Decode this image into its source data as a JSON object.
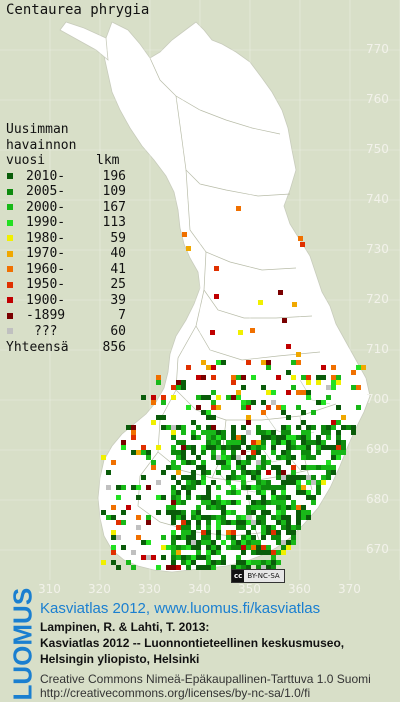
{
  "title": "Centaurea phrygia",
  "legend": {
    "header_line1": "Uusimman",
    "header_line2": "havainnon",
    "header_col1": "vuosi",
    "header_col2": "lkm",
    "items": [
      {
        "label": "2010-",
        "count": "196",
        "color": "#0a5c0a"
      },
      {
        "label": "2005-",
        "count": "109",
        "color": "#0e8a0e"
      },
      {
        "label": "2000-",
        "count": "167",
        "color": "#18b818"
      },
      {
        "label": "1990-",
        "count": "113",
        "color": "#22e022"
      },
      {
        "label": "1980-",
        "count": "59",
        "color": "#f0f000"
      },
      {
        "label": "1970-",
        "count": "40",
        "color": "#f0a800"
      },
      {
        "label": "1960-",
        "count": "41",
        "color": "#f07000"
      },
      {
        "label": "1950-",
        "count": "25",
        "color": "#e03000"
      },
      {
        "label": "1900-",
        "count": "39",
        "color": "#c00000"
      },
      {
        "label": "-1899",
        "count": "7",
        "color": "#7a0000"
      },
      {
        "label": "???",
        "count": "60",
        "color": "#c0c0c0"
      }
    ],
    "total_label": "Yhteensä",
    "total_count": "856"
  },
  "y_ticks": [
    "770",
    "760",
    "750",
    "740",
    "730",
    "720",
    "710",
    "700",
    "690",
    "680",
    "670"
  ],
  "x_ticks": [
    "310",
    "320",
    "330",
    "340",
    "350",
    "360",
    "370"
  ],
  "cc_badge": {
    "cc": "cc",
    "text": "BY-NC-SA"
  },
  "logo_text": "LUOMUS",
  "footer": {
    "atlas_title": "Kasviatlas 2012, www.luomus.fi/kasviatlas",
    "citation_line1": "Lampinen, R. & Lahti, T. 2013:",
    "citation_line2": "Kasviatlas 2012 -- Luonnontieteellinen keskusmuseo,",
    "citation_line3": "Helsingin yliopisto, Helsinki",
    "license_line1": "Creative Commons Nimeä-Epäkaupallinen-Tarttuva 1.0 Suomi",
    "license_line2": "http://creativecommons.org/licenses/by-nc-sa/1.0/fi"
  }
}
